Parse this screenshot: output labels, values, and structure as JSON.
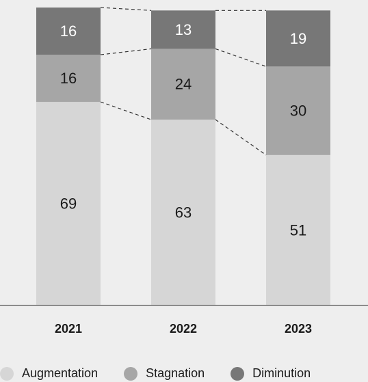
{
  "chart_data": {
    "type": "bar",
    "stacked": true,
    "categories": [
      "2021",
      "2022",
      "2023"
    ],
    "series": [
      {
        "name": "Augmentation",
        "values": [
          69,
          63,
          51
        ],
        "color": "#d6d6d6",
        "label_color": "#1a1a1a"
      },
      {
        "name": "Stagnation",
        "values": [
          16,
          24,
          30
        ],
        "color": "#a6a6a6",
        "label_color": "#1a1a1a"
      },
      {
        "name": "Diminution",
        "values": [
          16,
          13,
          19
        ],
        "color": "#777777",
        "label_color": "#ffffff"
      }
    ],
    "ylim": [
      0,
      101
    ],
    "connectors": "dashed",
    "grid": false,
    "legend_position": "bottom"
  }
}
